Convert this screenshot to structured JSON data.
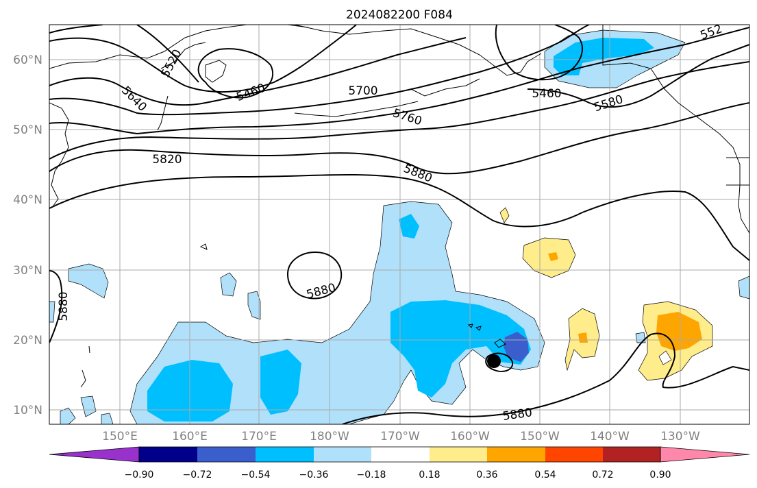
{
  "title": "2024082200 F084",
  "map": {
    "lat_ticks": [
      "10°N",
      "20°N",
      "30°N",
      "40°N",
      "50°N",
      "60°N"
    ],
    "lon_ticks": [
      "150°E",
      "160°E",
      "170°E",
      "180°W",
      "170°W",
      "160°W",
      "150°W",
      "140°W",
      "130°W"
    ],
    "contour_labels": [
      "5520",
      "5460",
      "5640",
      "5700",
      "5760",
      "5820",
      "5880",
      "5880",
      "5880",
      "5880",
      "5460",
      "5580",
      "552"
    ],
    "storm_marker": "tropical-cyclone-center"
  },
  "colorbar": {
    "colors": [
      "#9932cc",
      "#00008b",
      "#3a5fcd",
      "#00bfff",
      "#b0e0fa",
      "#ffffff",
      "#ffec8b",
      "#ffa500",
      "#ff4500",
      "#b22222",
      "#ff88aa"
    ],
    "tick_labels": [
      "−0.90",
      "−0.72",
      "−0.54",
      "−0.36",
      "−0.18",
      "0.18",
      "0.36",
      "0.54",
      "0.72",
      "0.90"
    ]
  },
  "chart_data": {
    "type": "heatmap",
    "title": "2024082200 F084",
    "levels": [
      -0.9,
      -0.72,
      -0.54,
      -0.36,
      -0.18,
      0.18,
      0.36,
      0.54,
      0.72,
      0.9
    ],
    "contour_values": [
      5460,
      5520,
      5580,
      5640,
      5700,
      5760,
      5820,
      5880
    ]
  }
}
